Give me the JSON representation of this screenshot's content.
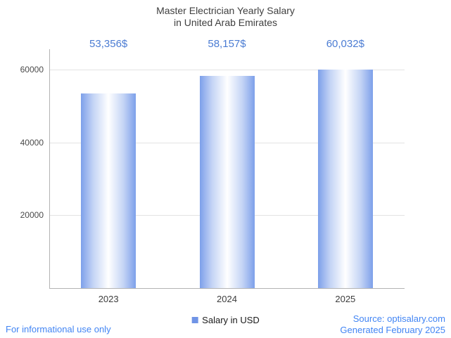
{
  "title": {
    "line1": "Master Electrician Yearly Salary",
    "line2": "in United Arab Emirates"
  },
  "chart_data": {
    "type": "bar",
    "title": "Master Electrician Yearly Salary in United Arab Emirates",
    "categories": [
      "2023",
      "2024",
      "2025"
    ],
    "values": [
      53356,
      58157,
      60032
    ],
    "value_labels": [
      "53,356$",
      "58,157$",
      "60,032$"
    ],
    "xlabel": "",
    "ylabel": "",
    "ylim": [
      0,
      64000
    ],
    "yticks": [
      20000,
      40000,
      60000
    ],
    "ytick_labels": [
      "20000",
      "40000",
      "60000"
    ],
    "grid": true,
    "legend": {
      "label": "Salary in USD",
      "position": "bottom"
    },
    "bar_edge_color": "#7da0ea",
    "bar_center_color": "#ffffff",
    "value_label_color": "#4b7cd3"
  },
  "legend": {
    "label": "Salary in USD"
  },
  "footer": {
    "left": "For informational use only",
    "source": "Source: optisalary.com",
    "generated": "Generated February 2025"
  },
  "colors": {
    "accent_blue": "#4285f4",
    "title_text": "#3f3f3f",
    "axis_text": "#4a4a4a",
    "gridline": "#e3e3e3",
    "axis_line": "#b3b3b3"
  }
}
